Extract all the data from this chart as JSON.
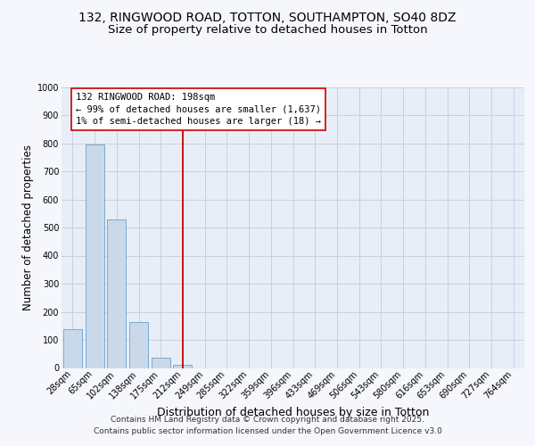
{
  "title_line1": "132, RINGWOOD ROAD, TOTTON, SOUTHAMPTON, SO40 8DZ",
  "title_line2": "Size of property relative to detached houses in Totton",
  "categories": [
    "28sqm",
    "65sqm",
    "102sqm",
    "138sqm",
    "175sqm",
    "212sqm",
    "249sqm",
    "285sqm",
    "322sqm",
    "359sqm",
    "396sqm",
    "433sqm",
    "469sqm",
    "506sqm",
    "543sqm",
    "580sqm",
    "616sqm",
    "653sqm",
    "690sqm",
    "727sqm",
    "764sqm"
  ],
  "values": [
    137,
    795,
    530,
    162,
    38,
    10,
    0,
    0,
    0,
    0,
    0,
    0,
    0,
    0,
    0,
    0,
    0,
    0,
    0,
    0,
    0
  ],
  "bar_color": "#c9d9ea",
  "bar_edge_color": "#7aaad0",
  "bar_edge_width": 0.7,
  "red_line_color": "#cc0000",
  "annotation_text": "132 RINGWOOD ROAD: 198sqm\n← 99% of detached houses are smaller (1,637)\n1% of semi-detached houses are larger (18) →",
  "annotation_box_facecolor": "#ffffff",
  "annotation_box_edgecolor": "#cc0000",
  "xlabel": "Distribution of detached houses by size in Totton",
  "ylabel": "Number of detached properties",
  "ylim": [
    0,
    1000
  ],
  "yticks": [
    0,
    100,
    200,
    300,
    400,
    500,
    600,
    700,
    800,
    900,
    1000
  ],
  "grid_color": "#c5d0e0",
  "plot_bg_color": "#e8eef8",
  "fig_bg_color": "#f5f7fc",
  "footer_line1": "Contains HM Land Registry data © Crown copyright and database right 2025.",
  "footer_line2": "Contains public sector information licensed under the Open Government Licence v3.0",
  "title_fontsize": 10,
  "subtitle_fontsize": 9.5,
  "xlabel_fontsize": 9,
  "ylabel_fontsize": 8.5,
  "tick_fontsize": 7,
  "annotation_fontsize": 7.5,
  "footer_fontsize": 6.5
}
